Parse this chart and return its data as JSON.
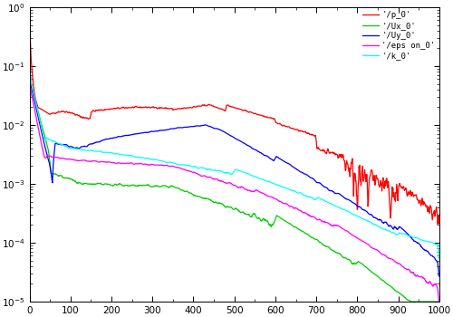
{
  "title": "",
  "xlabel": "",
  "ylabel": "",
  "xlim": [
    0,
    1000
  ],
  "ylim": [
    1e-05,
    1
  ],
  "legend_labels": [
    "'/p_0'",
    "'/Ux_0'",
    "'/Uy_0'",
    "'/eps on_0'",
    "'/k_0'"
  ],
  "legend_colors": [
    "red",
    "#00cc00",
    "blue",
    "magenta",
    "cyan"
  ],
  "bg_color": "#ffffff",
  "plot_bg": "#ffffff",
  "n_points": 1000
}
